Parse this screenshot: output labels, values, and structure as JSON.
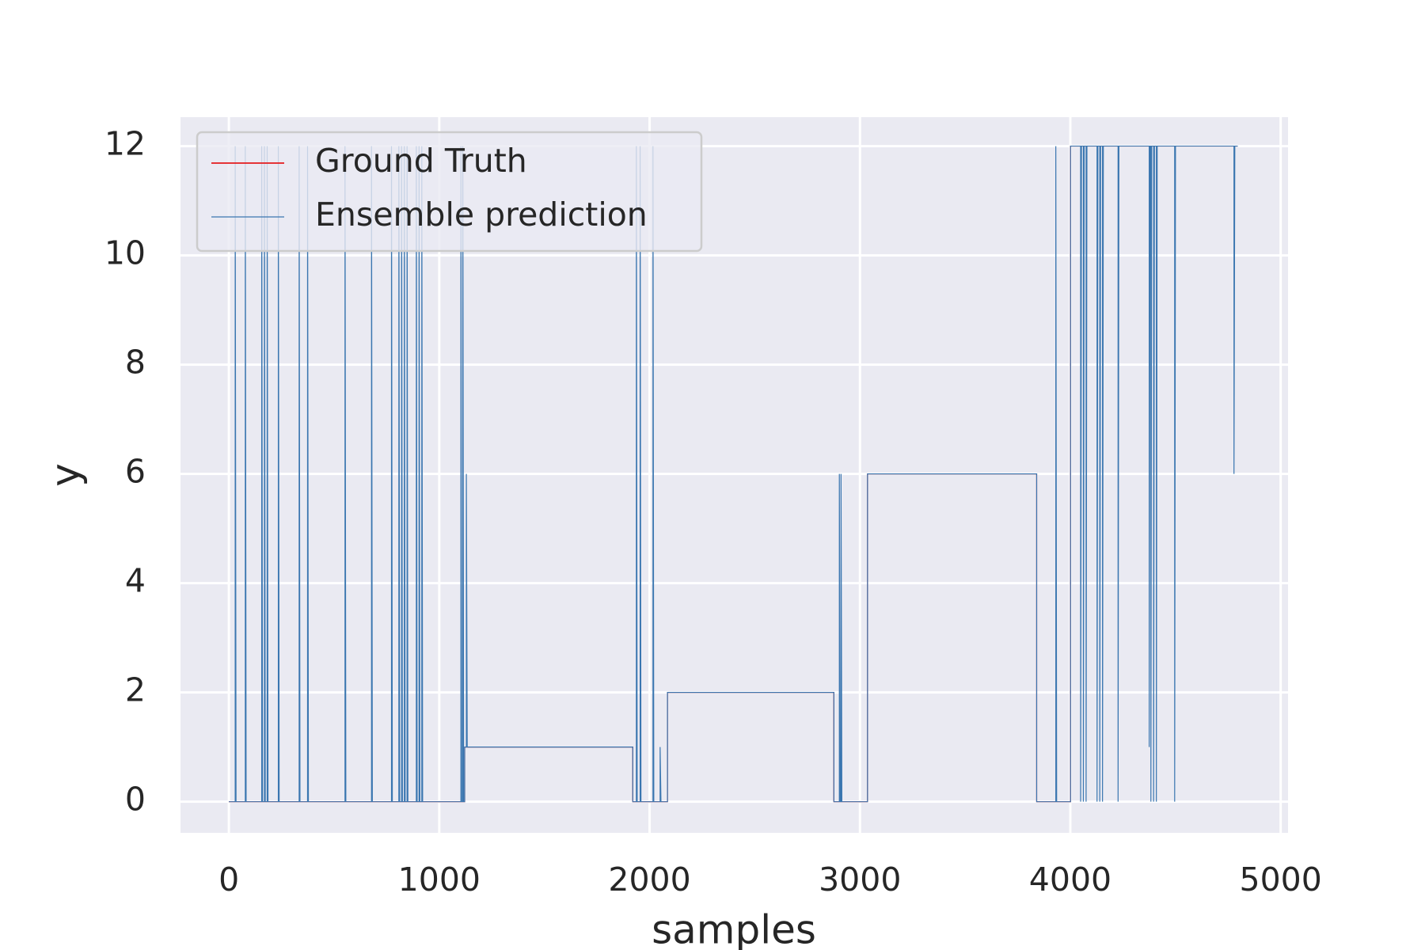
{
  "chart_data": {
    "type": "line",
    "xlabel": "samples",
    "ylabel": "y",
    "xlim": [
      -230,
      5035
    ],
    "ylim": [
      -0.57,
      12.53
    ],
    "xticks": [
      0,
      1000,
      2000,
      3000,
      4000,
      5000
    ],
    "yticks": [
      0,
      2,
      4,
      6,
      8,
      10,
      12
    ],
    "grid": true,
    "legend": "upper left",
    "series": [
      {
        "name": "Ground Truth",
        "color": "#e41a1c",
        "x": [
          0,
          1121,
          1121,
          1920,
          1920,
          2085,
          2085,
          2876,
          2876,
          3036,
          3036,
          3840,
          3840,
          4001,
          4001,
          4796
        ],
        "values": [
          0,
          0,
          1,
          1,
          0,
          0,
          2,
          2,
          0,
          0,
          6,
          6,
          0,
          0,
          12,
          12
        ]
      },
      {
        "name": "Ensemble prediction",
        "color": "#3a76b0",
        "x": [
          0,
          30,
          30,
          34,
          78,
          78,
          82,
          156,
          156,
          160,
          169,
          169,
          173,
          182,
          182,
          186,
          235,
          235,
          239,
          334,
          334,
          338,
          374,
          374,
          378,
          552,
          552,
          556,
          678,
          678,
          682,
          773,
          773,
          777,
          808,
          808,
          812,
          821,
          821,
          825,
          834,
          834,
          838,
          847,
          847,
          851,
          891,
          891,
          895,
          904,
          904,
          908,
          917,
          917,
          921,
          1103,
          1103,
          1107,
          1112,
          1112,
          1116,
          1121,
          1121,
          1129,
          1129,
          1133,
          1920,
          1920,
          1937,
          1937,
          1941,
          1955,
          1955,
          1959,
          2016,
          2016,
          2020,
          2050,
          2050,
          2054,
          2085,
          2085,
          2876,
          2876,
          2902,
          2902,
          2906,
          2910,
          2910,
          2914,
          3036,
          3036,
          3840,
          3840,
          3931,
          3931,
          3935,
          4001,
          4001,
          4049,
          4049,
          4053,
          4062,
          4062,
          4066,
          4075,
          4075,
          4079,
          4127,
          4127,
          4131,
          4140,
          4140,
          4144,
          4153,
          4153,
          4157,
          4227,
          4227,
          4231,
          4375,
          4375,
          4379,
          4383,
          4383,
          4387,
          4396,
          4396,
          4400,
          4409,
          4409,
          4413,
          4496,
          4496,
          4500,
          4778,
          4778,
          4782,
          4796
        ],
        "values": [
          0,
          0,
          12,
          0,
          0,
          12,
          0,
          0,
          12,
          0,
          0,
          12,
          0,
          0,
          12,
          0,
          0,
          12,
          0,
          0,
          12,
          0,
          0,
          12,
          0,
          0,
          12,
          0,
          0,
          12,
          0,
          0,
          12,
          0,
          0,
          12,
          0,
          0,
          12,
          0,
          0,
          12,
          0,
          0,
          12,
          0,
          0,
          12,
          0,
          0,
          12,
          0,
          0,
          12,
          0,
          0,
          12,
          0,
          0,
          12,
          0,
          0,
          1,
          1,
          6,
          1,
          1,
          0,
          0,
          12,
          0,
          0,
          12,
          0,
          0,
          12,
          0,
          0,
          1,
          0,
          0,
          2,
          2,
          0,
          0,
          6,
          0,
          0,
          6,
          0,
          0,
          6,
          6,
          0,
          0,
          12,
          0,
          0,
          12,
          12,
          0,
          12,
          12,
          0,
          12,
          12,
          0,
          12,
          12,
          0,
          12,
          12,
          0,
          12,
          12,
          0,
          12,
          12,
          0,
          12,
          12,
          1,
          12,
          12,
          0,
          12,
          12,
          0,
          12,
          12,
          0,
          12,
          12,
          0,
          12,
          12,
          6,
          12,
          12
        ]
      }
    ]
  }
}
